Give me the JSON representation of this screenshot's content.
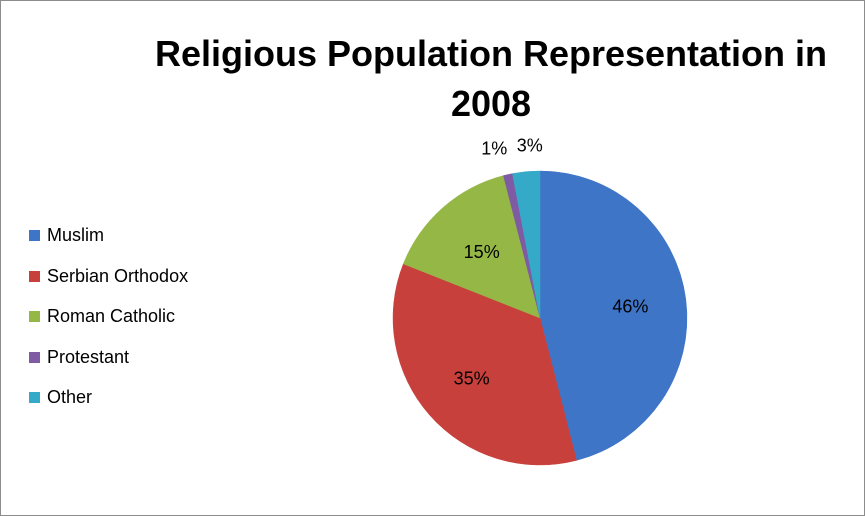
{
  "chart_data": {
    "type": "pie",
    "title": "Religious Population Representation in 2008",
    "categories": [
      "Muslim",
      "Serbian Orthodox",
      "Roman Catholic",
      "Protestant",
      "Other"
    ],
    "values": [
      46,
      35,
      15,
      1,
      3
    ],
    "labels": [
      "46%",
      "35%",
      "15%",
      "1%",
      "3%"
    ],
    "colors": [
      "#3f75c7",
      "#c8403c",
      "#95b746",
      "#7e5ba3",
      "#35aac8"
    ],
    "legend_position": "left"
  }
}
